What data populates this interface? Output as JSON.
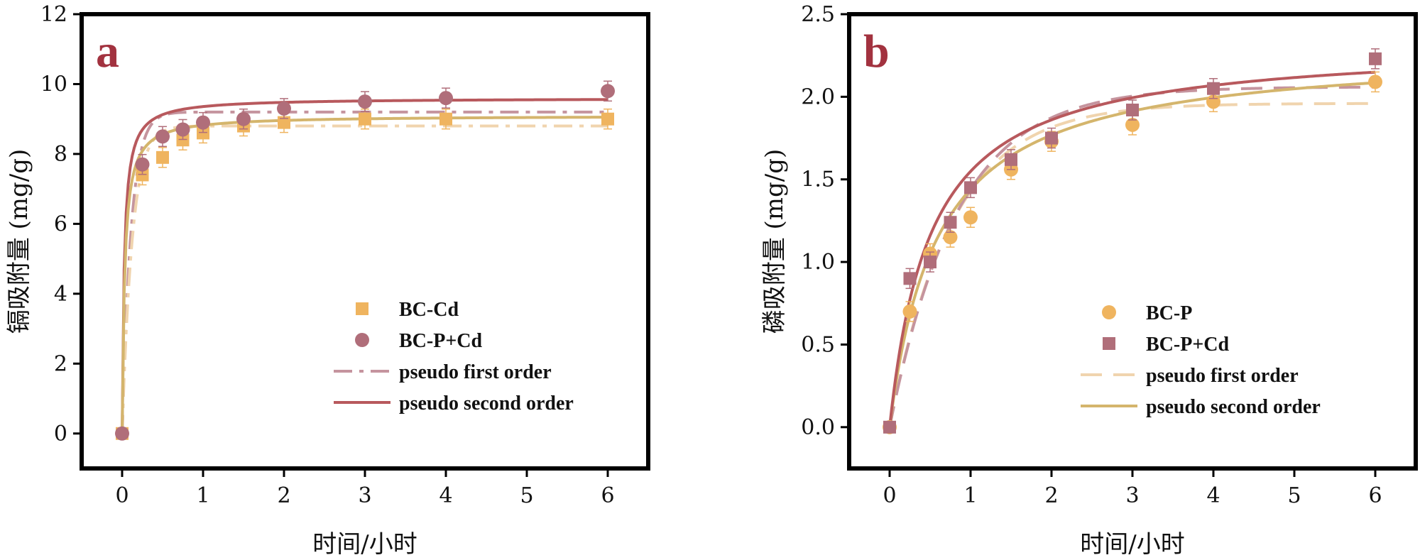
{
  "colors": {
    "gold": "#efb45f",
    "mauve": "#b06e7a",
    "red_line": "#b8595d",
    "mauve_dash": "#c5949e",
    "gold_line": "#d4b56c",
    "cream_dash": "#f0d4ae",
    "letter": "#a2323f"
  },
  "chart_data": [
    {
      "type": "scatter",
      "panel_label": "a",
      "xlabel": "时间/小时",
      "ylabel": "镉吸附量 (mg/g)",
      "xlim": [
        -0.5,
        6.5
      ],
      "ylim": [
        -1,
        12
      ],
      "xticks": [
        0,
        1,
        2,
        3,
        4,
        5,
        6
      ],
      "yticks": [
        0,
        2,
        4,
        6,
        8,
        10,
        12
      ],
      "legend_position": "bottom-right",
      "series": [
        {
          "name": "BC-Cd",
          "kind": "points",
          "marker": "square",
          "color": "#efb45f",
          "x": [
            0,
            0.25,
            0.5,
            0.75,
            1,
            1.5,
            2,
            3,
            4,
            6
          ],
          "y": [
            0,
            7.4,
            7.9,
            8.4,
            8.6,
            8.8,
            8.9,
            9.0,
            9.0,
            9.0
          ]
        },
        {
          "name": "BC-P+Cd",
          "kind": "points",
          "marker": "circle",
          "color": "#b06e7a",
          "x": [
            0,
            0.25,
            0.5,
            0.75,
            1,
            1.5,
            2,
            3,
            4,
            6
          ],
          "y": [
            0,
            7.7,
            8.5,
            8.7,
            8.9,
            9.0,
            9.3,
            9.5,
            9.6,
            9.8
          ]
        },
        {
          "name": "pseudo first order",
          "kind": "curve",
          "model": "pfo",
          "qe": 9.2,
          "k": 9.0,
          "style": "dashdot",
          "color": "#c5949e"
        },
        {
          "name": "",
          "kind": "curve",
          "model": "pfo",
          "qe": 8.8,
          "k": 8.0,
          "style": "dashdot",
          "color": "#f0d4ae"
        },
        {
          "name": "pseudo second order",
          "kind": "curve",
          "model": "pso",
          "qe": 9.6,
          "k": 4.0,
          "style": "solid",
          "color": "#b8595d"
        },
        {
          "name": "",
          "kind": "curve",
          "model": "pso",
          "qe": 9.1,
          "k": 3.5,
          "style": "solid",
          "color": "#d4b56c"
        }
      ]
    },
    {
      "type": "scatter",
      "panel_label": "b",
      "xlabel": "时间/小时",
      "ylabel": "磷吸附量 (mg/g)",
      "xlim": [
        -0.5,
        6.5
      ],
      "ylim": [
        -0.25,
        2.5
      ],
      "xticks": [
        0,
        1,
        2,
        3,
        4,
        5,
        6
      ],
      "yticks": [
        0.0,
        0.5,
        1.0,
        1.5,
        2.0,
        2.5
      ],
      "legend_position": "bottom-right",
      "series": [
        {
          "name": "BC-P",
          "kind": "points",
          "marker": "circle",
          "color": "#efb45f",
          "x": [
            0,
            0.25,
            0.5,
            0.75,
            1,
            1.5,
            2,
            3,
            4,
            6
          ],
          "y": [
            0,
            0.7,
            1.05,
            1.15,
            1.27,
            1.56,
            1.73,
            1.83,
            1.97,
            2.09
          ]
        },
        {
          "name": "BC-P+Cd",
          "kind": "points",
          "marker": "square",
          "color": "#b06e7a",
          "x": [
            0,
            0.25,
            0.5,
            0.75,
            1,
            1.5,
            2,
            3,
            4,
            6
          ],
          "y": [
            0,
            0.9,
            1.0,
            1.24,
            1.45,
            1.62,
            1.75,
            1.92,
            2.05,
            2.23
          ]
        },
        {
          "name": "pseudo first order",
          "kind": "curve",
          "model": "pfo",
          "qe": 1.96,
          "k": 1.3,
          "style": "dashed",
          "color": "#f0d4ae"
        },
        {
          "name": "",
          "kind": "curve",
          "model": "pfo",
          "qe": 2.06,
          "k": 1.2,
          "style": "dashed",
          "color": "#c5949e"
        },
        {
          "name": "pseudo second order",
          "kind": "curve",
          "model": "pso",
          "qe": 2.29,
          "k": 0.74,
          "style": "solid",
          "color": "#d4b56c"
        },
        {
          "name": "",
          "kind": "curve",
          "model": "pso",
          "qe": 2.33,
          "k": 0.85,
          "style": "solid",
          "color": "#b8595d"
        }
      ]
    }
  ]
}
